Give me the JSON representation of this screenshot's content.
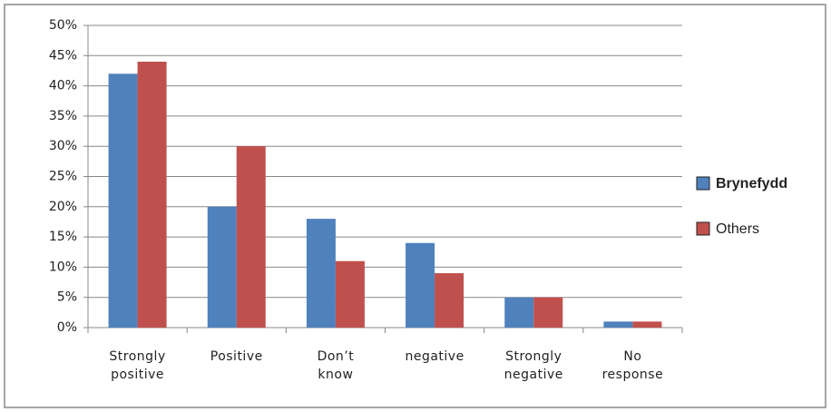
{
  "chart_data": {
    "type": "bar",
    "categories": [
      "Strongly positive",
      "Positive",
      "Don’t know",
      "negative",
      "Strongly negative",
      "No response"
    ],
    "series": [
      {
        "name": "Brynefydd",
        "color": "#4f81bd",
        "values": [
          42,
          20,
          18,
          14,
          5,
          1
        ]
      },
      {
        "name": "Others",
        "color": "#c0504d",
        "values": [
          44,
          30,
          11,
          9,
          5,
          1
        ]
      }
    ],
    "ylim": [
      0,
      50
    ],
    "yticks": [
      {
        "value": 0,
        "label": "0%"
      },
      {
        "value": 5,
        "label": "5%"
      },
      {
        "value": 10,
        "label": "10%"
      },
      {
        "value": 15,
        "label": "15%"
      },
      {
        "value": 20,
        "label": "20%"
      },
      {
        "value": 25,
        "label": "25%"
      },
      {
        "value": 30,
        "label": "30%"
      },
      {
        "value": 35,
        "label": "35%"
      },
      {
        "value": 40,
        "label": "40%"
      },
      {
        "value": 45,
        "label": "45%"
      },
      {
        "value": 50,
        "label": "50%"
      }
    ],
    "grid": true,
    "legend": "right"
  }
}
